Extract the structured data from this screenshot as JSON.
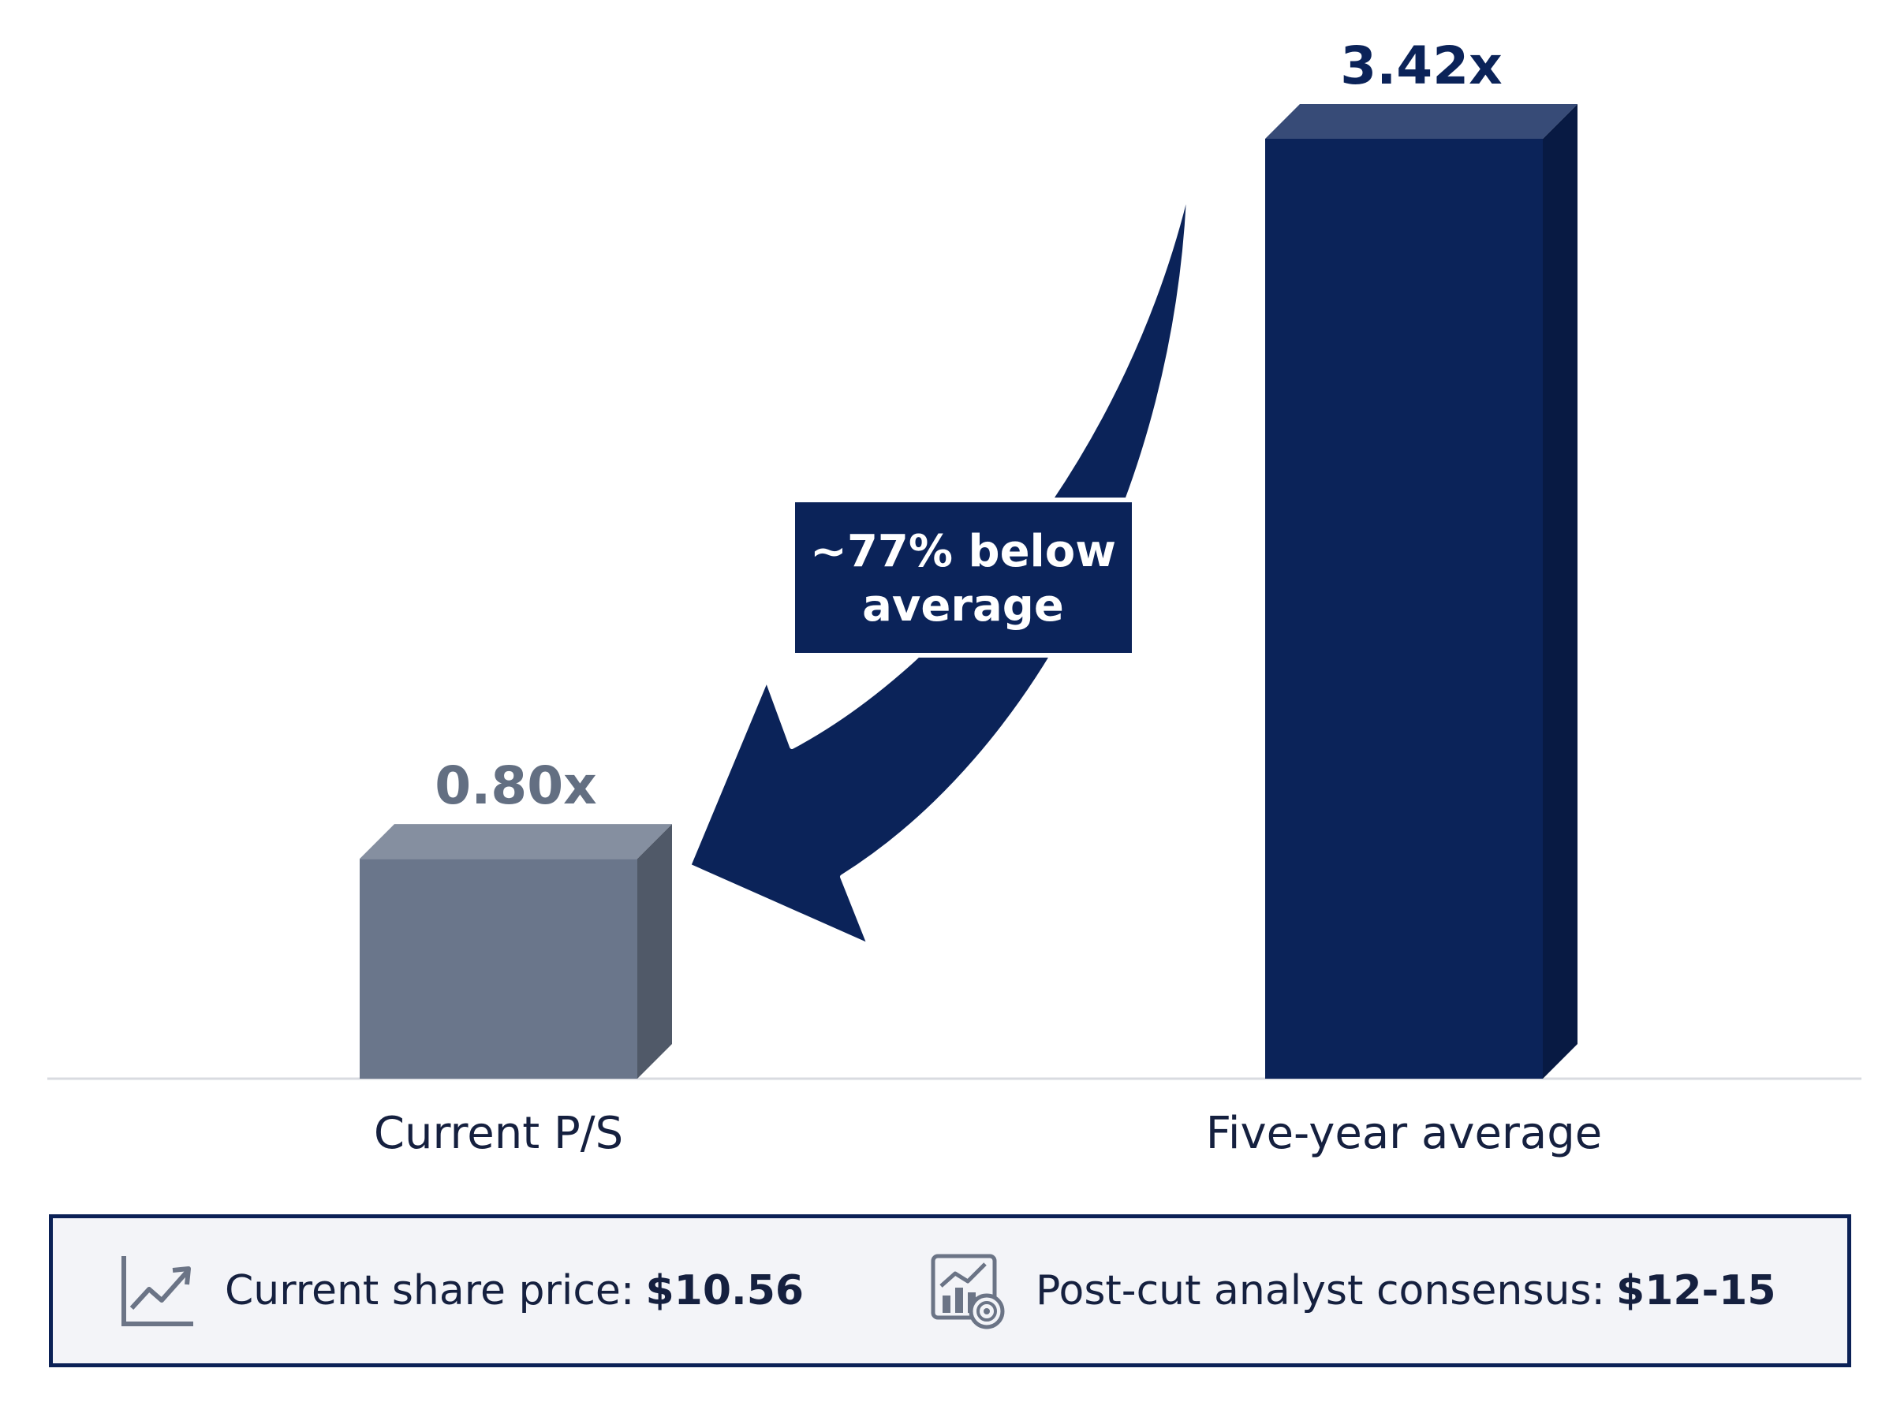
{
  "chart_data": {
    "type": "bar",
    "categories": [
      "Current P/S",
      "Five-year average"
    ],
    "values": [
      0.8,
      3.42
    ],
    "data_labels": [
      "0.80x",
      "3.42x"
    ],
    "title": "",
    "xlabel": "",
    "ylabel": "",
    "ylim": [
      0,
      3.42
    ],
    "grid": false,
    "style": "3d",
    "colors": [
      "#6a768b",
      "#0b2359"
    ],
    "label_colors": [
      "#636f82",
      "#0b2359"
    ],
    "annotation": {
      "type": "arrow",
      "from": "Five-year average",
      "to": "Current P/S",
      "lines": [
        "~77% below",
        "average"
      ],
      "color": "#0b2359"
    }
  },
  "footer": {
    "items": [
      {
        "icon": "trend-line-icon",
        "label": "Current share price:",
        "value": "$10.56"
      },
      {
        "icon": "analytics-target-icon",
        "label": "Post-cut analyst consensus:",
        "value": "$12-15"
      }
    ],
    "border_color": "#0b2156"
  }
}
